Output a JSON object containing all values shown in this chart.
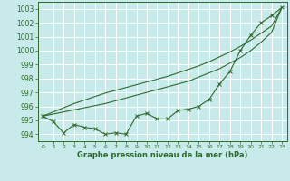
{
  "x": [
    0,
    1,
    2,
    3,
    4,
    5,
    6,
    7,
    8,
    9,
    10,
    11,
    12,
    13,
    14,
    15,
    16,
    17,
    18,
    19,
    20,
    21,
    22,
    23
  ],
  "series1": [
    995.3,
    994.9,
    994.1,
    994.7,
    994.5,
    994.4,
    994.0,
    994.1,
    994.0,
    995.3,
    995.5,
    995.1,
    995.1,
    995.7,
    995.8,
    996.0,
    996.5,
    997.6,
    998.5,
    1000.0,
    1001.1,
    1002.0,
    1002.5,
    1003.1
  ],
  "series2": [
    995.3,
    995.45,
    995.6,
    995.75,
    995.9,
    996.05,
    996.2,
    996.4,
    996.6,
    996.8,
    997.0,
    997.2,
    997.4,
    997.6,
    997.8,
    998.1,
    998.4,
    998.7,
    999.1,
    999.5,
    1000.0,
    1000.6,
    1001.3,
    1003.1
  ],
  "series3": [
    995.3,
    995.6,
    995.9,
    996.2,
    996.45,
    996.7,
    996.95,
    997.15,
    997.35,
    997.55,
    997.75,
    997.95,
    998.15,
    998.4,
    998.65,
    998.9,
    999.2,
    999.55,
    999.9,
    1000.3,
    1000.75,
    1001.25,
    1001.75,
    1003.1
  ],
  "line_color": "#2d6a2d",
  "bg_color": "#c8eaea",
  "grid_color": "#ffffff",
  "xlabel": "Graphe pression niveau de la mer (hPa)",
  "ylim": [
    993.5,
    1003.5
  ],
  "xlim": [
    -0.5,
    23.5
  ],
  "yticks": [
    994,
    995,
    996,
    997,
    998,
    999,
    1000,
    1001,
    1002,
    1003
  ],
  "xticks": [
    0,
    1,
    2,
    3,
    4,
    5,
    6,
    7,
    8,
    9,
    10,
    11,
    12,
    13,
    14,
    15,
    16,
    17,
    18,
    19,
    20,
    21,
    22,
    23
  ],
  "xtick_labels": [
    "0",
    "1",
    "2",
    "3",
    "4",
    "5",
    "6",
    "7",
    "8",
    "9",
    "10",
    "11",
    "12",
    "13",
    "14",
    "15",
    "16",
    "17",
    "18",
    "19",
    "20",
    "21",
    "22",
    "23"
  ]
}
